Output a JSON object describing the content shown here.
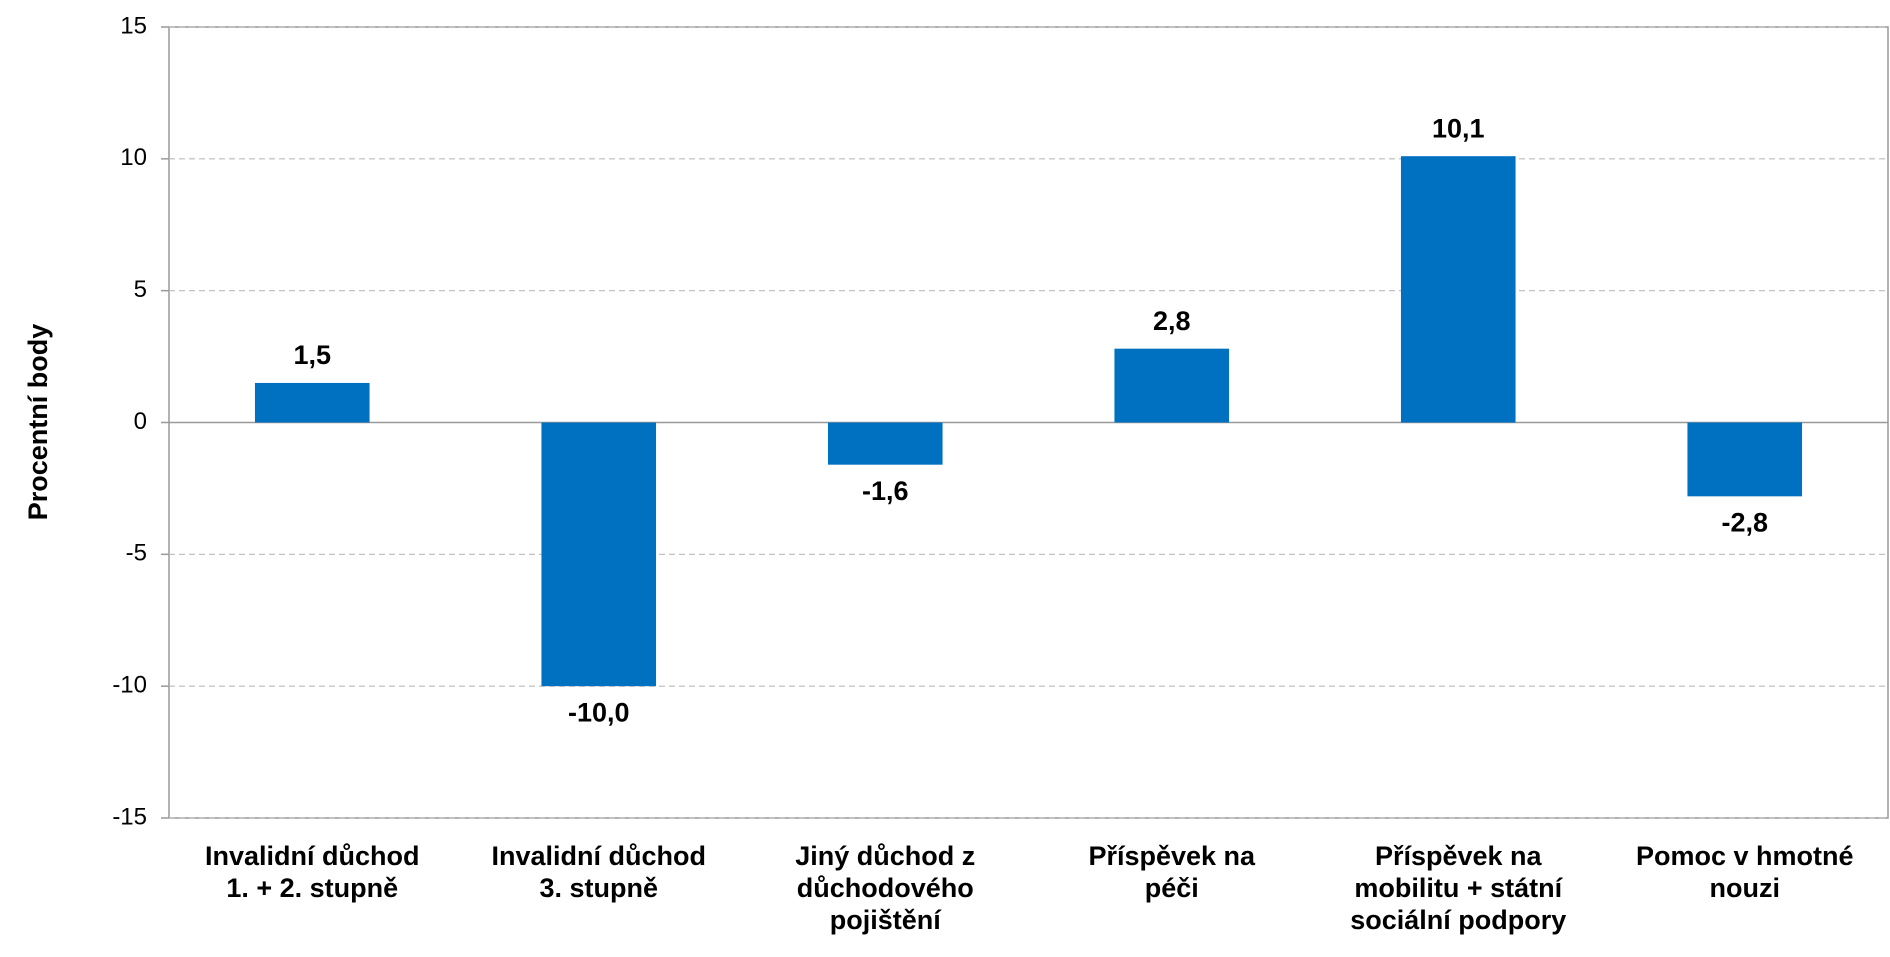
{
  "chart_data": {
    "type": "bar",
    "y_axis_label": "Procentní body",
    "categories": [
      "Invalidní důchod\n1. + 2. stupně",
      "Invalidní důchod\n3. stupně",
      "Jiný důchod z\ndůchodového\npojištění",
      "Příspěvek na\npéči",
      "Příspěvek na\nmobilitu + státní\nsociální podpory",
      "Pomoc v hmotné\nnouzi"
    ],
    "values": [
      1.5,
      -10.0,
      -1.6,
      2.8,
      10.1,
      -2.8
    ],
    "value_labels": [
      "1,5",
      "-10,0",
      "-1,6",
      "2,8",
      "10,1",
      "-2,8"
    ],
    "color": "#0070c0",
    "ylim": [
      -15,
      15
    ],
    "yticks": [
      -15,
      -10,
      -5,
      0,
      5,
      10,
      15
    ],
    "grid": true
  }
}
